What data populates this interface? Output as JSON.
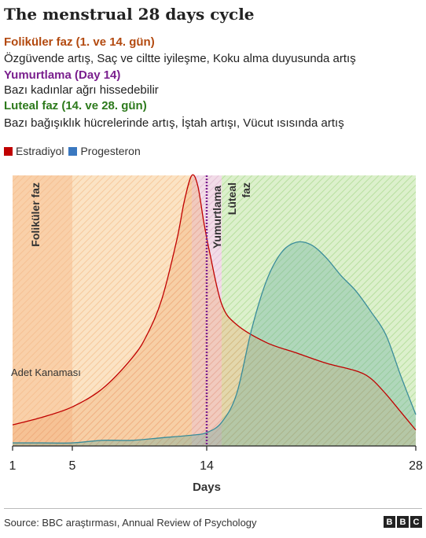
{
  "title": "The menstrual 28 days cycle",
  "phases": [
    {
      "heading": "Foliküler faz (1. ve 14. gün)",
      "description": "Özgüvende artış, Saç ve ciltte iyileşme, Koku alma duyusunda artış",
      "color": "#b34a10"
    },
    {
      "heading": "Yumurtlama (Day 14)",
      "description": "Bazı kadınlar ağrı hissedebilir",
      "color": "#7a1f8e"
    },
    {
      "heading": "Luteal faz (14. ve 28. gün)",
      "description": "Bazı bağışıklık hücrelerinde artış, İştah artışı, Vücut ısısında artış",
      "color": "#2d7a1c"
    }
  ],
  "legend": [
    {
      "label": "Estradiyol",
      "color": "#c00000"
    },
    {
      "label": "Progesteron",
      "color": "#3a78c0"
    }
  ],
  "source": "Source: BBC araştırması, Annual Review of Psychology",
  "logo": [
    "B",
    "B",
    "C"
  ],
  "chart_data": {
    "type": "line",
    "xlabel": "Days",
    "ylabel": "",
    "xlim": [
      1,
      28
    ],
    "ylim": [
      0,
      100
    ],
    "x_ticks": [
      1,
      5,
      14,
      28
    ],
    "bands": [
      {
        "label": "Foliküler faz",
        "from": 1,
        "to": 13,
        "color": "#f6c48d"
      },
      {
        "label": "Yumurtlama",
        "from": 13,
        "to": 15,
        "color": "#e8c8dc"
      },
      {
        "label": "Luteal faz",
        "from": 15,
        "to": 28,
        "color": "#b8e0a0"
      }
    ],
    "annotations": [
      {
        "label": "Adet Kanaması",
        "from": 1,
        "to": 5
      }
    ],
    "ovulation_day": 14,
    "series": [
      {
        "name": "Estradiyol",
        "color": "#c00000",
        "x": [
          1,
          3,
          5,
          7,
          9,
          10,
          11,
          12,
          12.5,
          13,
          13.4,
          13.8,
          14.2,
          15,
          16,
          18,
          20,
          22,
          24,
          25,
          26,
          27,
          28
        ],
        "y": [
          3,
          6,
          10,
          17,
          29,
          38,
          52,
          75,
          90,
          100,
          96,
          82,
          70,
          50,
          42,
          35,
          31,
          27,
          24,
          21,
          15,
          8,
          1
        ]
      },
      {
        "name": "Progesteron",
        "color": "#3a78c0",
        "x": [
          1,
          3,
          5,
          7,
          9,
          11,
          13,
          14,
          15,
          16,
          17,
          18,
          19,
          20,
          21,
          22,
          23,
          24,
          25,
          26,
          27,
          28
        ],
        "y": [
          -4,
          -4,
          -4,
          -3,
          -3,
          -2,
          -1,
          0,
          4,
          15,
          40,
          59,
          70,
          74,
          73,
          68,
          61,
          55,
          47,
          38,
          22,
          7
        ]
      }
    ]
  }
}
